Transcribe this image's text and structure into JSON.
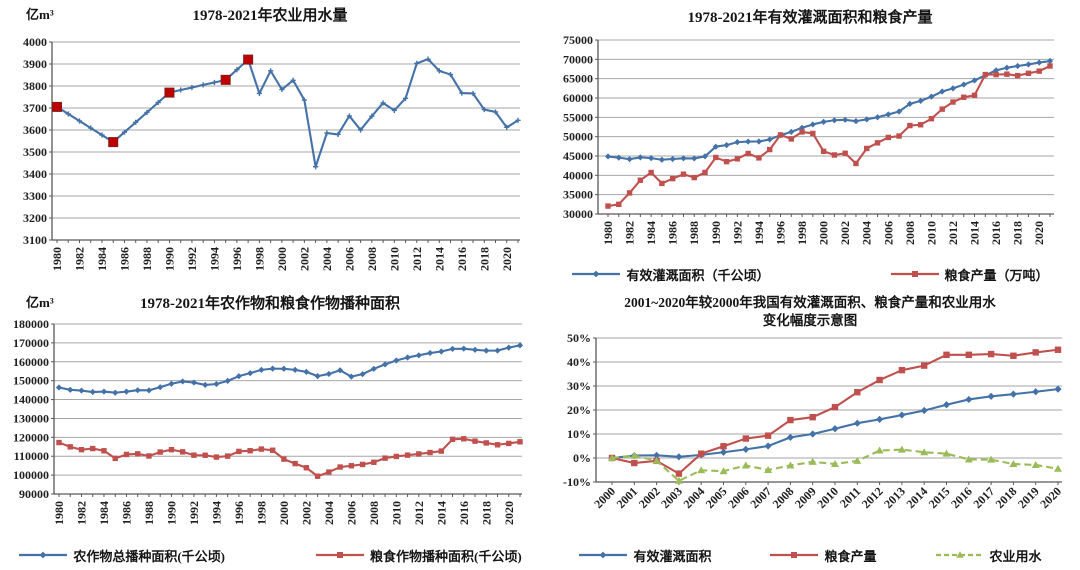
{
  "colors": {
    "series_blue": "#4472A8",
    "series_red": "#C0504D",
    "series_green": "#9BBB59",
    "highlight_red": "#C00000",
    "highlight_red_border": "#7F1D18",
    "grid": "#A6A6A6",
    "axis": "#595959",
    "text": "#1F1F1F",
    "background": "#FFFFFF"
  },
  "chart_data": [
    {
      "type": "line",
      "title": "1978-2021年农业用水量",
      "unit_label": "亿m³",
      "years": [
        1980,
        1981,
        1982,
        1983,
        1984,
        1985,
        1986,
        1987,
        1988,
        1989,
        1990,
        1991,
        1992,
        1993,
        1994,
        1995,
        1996,
        1997,
        1998,
        1999,
        2000,
        2001,
        2002,
        2003,
        2004,
        2005,
        2006,
        2007,
        2008,
        2009,
        2010,
        2011,
        2012,
        2013,
        2014,
        2015,
        2016,
        2017,
        2018,
        2019,
        2020,
        2021
      ],
      "xtick_labels": [
        1980,
        1982,
        1984,
        1986,
        1988,
        1990,
        1992,
        1994,
        1996,
        1998,
        2000,
        2002,
        2004,
        2006,
        2008,
        2010,
        2012,
        2014,
        2016,
        2018,
        2020
      ],
      "ylim": [
        3100,
        4000
      ],
      "yticks": [
        3100,
        3200,
        3300,
        3400,
        3500,
        3600,
        3700,
        3800,
        3900,
        4000
      ],
      "ytick_suffix": "",
      "legend": false,
      "series": [
        {
          "name": "农业用水量",
          "color": "#4472A8",
          "marker": "plus",
          "dash": false,
          "values": [
            3705,
            3673,
            3641,
            3609,
            3577,
            3545,
            3590,
            3635,
            3680,
            3725,
            3770,
            3782,
            3793,
            3805,
            3816,
            3828,
            3874,
            3920,
            3766,
            3869,
            3784,
            3826,
            3736,
            3433,
            3586,
            3580,
            3664,
            3600,
            3663,
            3723,
            3689,
            3744,
            3903,
            3922,
            3869,
            3852,
            3768,
            3766,
            3693,
            3682,
            3612,
            3644
          ]
        }
      ],
      "highlight_points": {
        "series": 0,
        "marker": "square",
        "color": "#C00000",
        "years": [
          1980,
          1985,
          1990,
          1995,
          1997
        ],
        "indices": [
          0,
          5,
          10,
          15,
          17
        ]
      }
    },
    {
      "type": "line",
      "title": "1978-2021年有效灌溉面积和粮食产量",
      "unit_label": "",
      "years": [
        1980,
        1981,
        1982,
        1983,
        1984,
        1985,
        1986,
        1987,
        1988,
        1989,
        1990,
        1991,
        1992,
        1993,
        1994,
        1995,
        1996,
        1997,
        1998,
        1999,
        2000,
        2001,
        2002,
        2003,
        2004,
        2005,
        2006,
        2007,
        2008,
        2009,
        2010,
        2011,
        2012,
        2013,
        2014,
        2015,
        2016,
        2017,
        2018,
        2019,
        2020,
        2021
      ],
      "xtick_labels": [
        1980,
        1982,
        1984,
        1986,
        1988,
        1990,
        1992,
        1994,
        1996,
        1998,
        2000,
        2002,
        2004,
        2006,
        2008,
        2010,
        2012,
        2014,
        2016,
        2018,
        2020
      ],
      "ylim": [
        30000,
        75000
      ],
      "yticks": [
        30000,
        35000,
        40000,
        45000,
        50000,
        55000,
        60000,
        65000,
        70000,
        75000
      ],
      "ytick_suffix": "",
      "legend": true,
      "series": [
        {
          "name": "有效灌溉面积（千公顷）",
          "color": "#4472A8",
          "marker": "diamond",
          "dash": false,
          "values": [
            44888,
            44574,
            44177,
            44644,
            44453,
            44036,
            44226,
            44403,
            44376,
            44917,
            47403,
            47822,
            48590,
            48728,
            48759,
            49281,
            50381,
            51239,
            52296,
            53158,
            53820,
            54249,
            54355,
            54014,
            54478,
            55029,
            55750,
            56518,
            58472,
            59261,
            60348,
            61682,
            62491,
            63473,
            64540,
            65873,
            67141,
            67816,
            68272,
            68679,
            69161,
            69561
          ]
        },
        {
          "name": "粮食产量（万吨）",
          "color": "#C0504D",
          "marker": "square",
          "dash": false,
          "values": [
            32056,
            32502,
            35450,
            38728,
            40731,
            37911,
            39151,
            40298,
            39408,
            40755,
            44624,
            43529,
            44266,
            45649,
            44510,
            46662,
            50454,
            49417,
            51230,
            50839,
            46218,
            45264,
            45706,
            43070,
            46947,
            48402,
            49800,
            50160,
            52871,
            53082,
            54648,
            57121,
            58958,
            60194,
            60703,
            66060,
            66044,
            66161,
            65789,
            66384,
            66949,
            68285
          ]
        }
      ]
    },
    {
      "type": "line",
      "title": "1978-2021年农作物和粮食作物播种面积",
      "unit_label": "亿m³",
      "years": [
        1980,
        1981,
        1982,
        1983,
        1984,
        1985,
        1986,
        1987,
        1988,
        1989,
        1990,
        1991,
        1992,
        1993,
        1994,
        1995,
        1996,
        1997,
        1998,
        1999,
        2000,
        2001,
        2002,
        2003,
        2004,
        2005,
        2006,
        2007,
        2008,
        2009,
        2010,
        2011,
        2012,
        2013,
        2014,
        2015,
        2016,
        2017,
        2018,
        2019,
        2020,
        2021
      ],
      "xtick_labels": [
        1980,
        1982,
        1984,
        1986,
        1988,
        1990,
        1992,
        1994,
        1996,
        1998,
        2000,
        2002,
        2004,
        2006,
        2008,
        2010,
        2012,
        2014,
        2016,
        2018,
        2020
      ],
      "ylim": [
        90000,
        180000
      ],
      "yticks": [
        90000,
        100000,
        110000,
        120000,
        130000,
        140000,
        150000,
        160000,
        170000,
        180000
      ],
      "ytick_suffix": "",
      "legend": true,
      "series": [
        {
          "name": "农作物总播种面积(千公顷)",
          "color": "#4472A8",
          "marker": "diamond",
          "dash": false,
          "values": [
            146380,
            145157,
            144755,
            143985,
            144221,
            143626,
            144204,
            144957,
            144869,
            146554,
            148362,
            149586,
            149007,
            147741,
            148241,
            149879,
            152381,
            153969,
            155706,
            156373,
            156300,
            155708,
            154636,
            152415,
            153553,
            155488,
            152149,
            153464,
            156266,
            158639,
            160675,
            162283,
            163416,
            164627,
            165446,
            166829,
            166939,
            166332,
            165902,
            165931,
            167487,
            168695
          ]
        },
        {
          "name": "粮食作物播种面积(千公顷)",
          "color": "#C0504D",
          "marker": "square",
          "dash": false,
          "values": [
            117234,
            114958,
            113462,
            114047,
            112884,
            108845,
            110933,
            111268,
            110123,
            112205,
            113466,
            112314,
            110560,
            110509,
            109544,
            110060,
            112548,
            112912,
            113787,
            113161,
            108463,
            106080,
            103891,
            99410,
            101606,
            104278,
            104958,
            105638,
            106793,
            108986,
            109876,
            110573,
            111205,
            111956,
            112723,
            118963,
            119230,
            117989,
            117037,
            116064,
            116768,
            117631
          ]
        }
      ]
    },
    {
      "type": "line",
      "title_line1": "2001~2020年较2000年我国有效灌溉面积、粮食产量和农业用水",
      "title_line2": "变化幅度示意图",
      "unit_label": "",
      "years": [
        2000,
        2001,
        2002,
        2003,
        2004,
        2005,
        2006,
        2007,
        2008,
        2009,
        2010,
        2011,
        2012,
        2013,
        2014,
        2015,
        2016,
        2017,
        2018,
        2019,
        2020
      ],
      "xtick_labels": [
        2000,
        2001,
        2002,
        2003,
        2004,
        2005,
        2006,
        2007,
        2008,
        2009,
        2010,
        2011,
        2012,
        2013,
        2014,
        2015,
        2016,
        2017,
        2018,
        2019,
        2020
      ],
      "ylim": [
        -10,
        50
      ],
      "yticks": [
        -10,
        0,
        10,
        20,
        30,
        40,
        50
      ],
      "ytick_suffix": "%",
      "legend": true,
      "series": [
        {
          "name": "有效灌溉面积",
          "color": "#4472A8",
          "marker": "diamond",
          "dash": false,
          "values": [
            0,
            1.0,
            1.1,
            0.5,
            1.3,
            2.4,
            3.6,
            5.0,
            8.6,
            10.0,
            12.2,
            14.5,
            16.1,
            17.9,
            19.8,
            22.2,
            24.4,
            25.7,
            26.6,
            27.6,
            28.7
          ]
        },
        {
          "name": "粮食产量",
          "color": "#C0504D",
          "marker": "square",
          "dash": false,
          "values": [
            0,
            -2.1,
            -1.2,
            -6.5,
            1.8,
            4.9,
            8.1,
            9.3,
            15.8,
            17.0,
            21.2,
            27.4,
            32.5,
            36.6,
            38.5,
            43.0,
            43.0,
            43.3,
            42.6,
            44.0,
            45.1
          ]
        },
        {
          "name": "农业用水",
          "color": "#9BBB59",
          "marker": "triangle",
          "dash": true,
          "values": [
            0,
            1.0,
            -1.2,
            -9.5,
            -5.1,
            -5.5,
            -3.1,
            -5.0,
            -3.1,
            -1.6,
            -2.5,
            -1.2,
            3.1,
            3.5,
            2.4,
            1.8,
            -0.6,
            -0.7,
            -2.5,
            -2.9,
            -4.5
          ]
        }
      ]
    }
  ]
}
